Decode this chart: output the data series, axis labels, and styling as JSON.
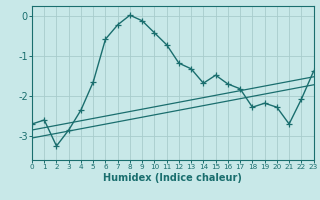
{
  "xlabel": "Humidex (Indice chaleur)",
  "bg_color": "#c8e8e8",
  "grid_color": "#a8cccc",
  "line_color": "#1a6e6e",
  "spine_color": "#1a6e6e",
  "xlim": [
    0,
    23
  ],
  "ylim": [
    -3.6,
    0.25
  ],
  "yticks": [
    0,
    -1,
    -2,
    -3
  ],
  "xtick_labels": [
    "0",
    "1",
    "2",
    "3",
    "4",
    "5",
    "6",
    "7",
    "8",
    "9",
    "10",
    "11",
    "12",
    "13",
    "14",
    "15",
    "16",
    "17",
    "18",
    "19",
    "20",
    "21",
    "22",
    "23"
  ],
  "main_x": [
    0,
    1,
    2,
    3,
    4,
    5,
    6,
    7,
    8,
    9,
    10,
    11,
    12,
    13,
    14,
    15,
    16,
    17,
    18,
    19,
    20,
    21,
    22,
    23
  ],
  "main_y": [
    -2.7,
    -2.6,
    -3.25,
    -2.85,
    -2.35,
    -1.65,
    -0.58,
    -0.22,
    0.02,
    -0.12,
    -0.42,
    -0.72,
    -1.18,
    -1.32,
    -1.68,
    -1.48,
    -1.7,
    -1.82,
    -2.28,
    -2.18,
    -2.28,
    -2.7,
    -2.08,
    -1.38
  ],
  "line2_x": [
    0,
    23
  ],
  "line2_y": [
    -2.85,
    -1.52
  ],
  "line3_x": [
    0,
    23
  ],
  "line3_y": [
    -3.05,
    -1.72
  ]
}
